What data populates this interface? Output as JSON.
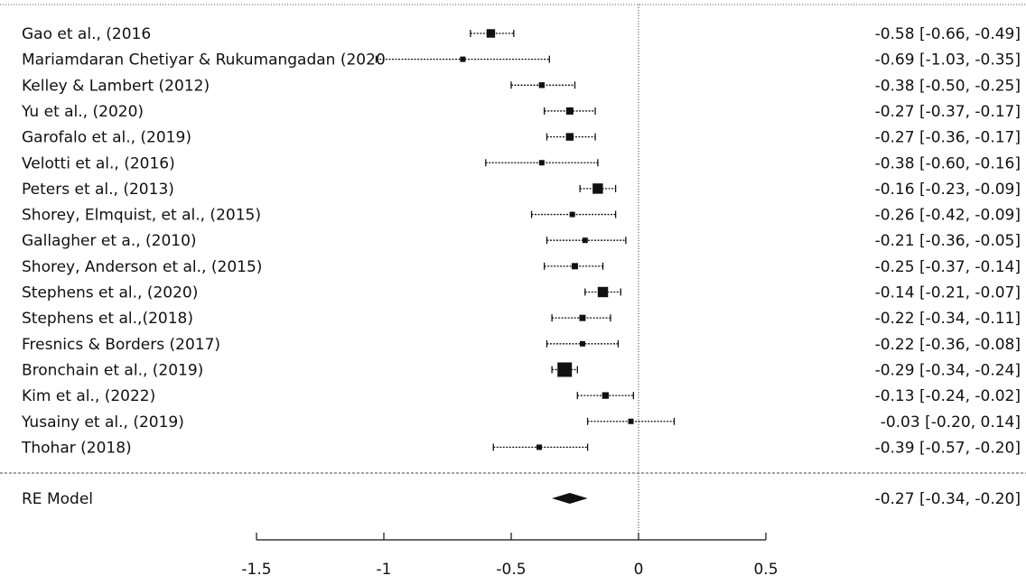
{
  "chart_data": {
    "type": "forest",
    "title": "",
    "xlabel": "",
    "xlim": [
      -1.5,
      0.5
    ],
    "x_ticks": [
      -1.5,
      -1,
      -0.5,
      0,
      0.5
    ],
    "x_tick_labels": [
      "-1.5",
      "-1",
      "-0.5",
      "0",
      "0.5"
    ],
    "reference_line": 0,
    "studies": [
      {
        "label": "Gao et al., (2016",
        "estimate": -0.58,
        "lower": -0.66,
        "upper": -0.49,
        "ci_text": "-0.58 [-0.66, -0.49]"
      },
      {
        "label": "Mariamdaran Chetiyar & Rukumangadan (2020",
        "estimate": -0.69,
        "lower": -1.03,
        "upper": -0.35,
        "ci_text": "-0.69 [-1.03, -0.35]"
      },
      {
        "label": "Kelley & Lambert (2012)",
        "estimate": -0.38,
        "lower": -0.5,
        "upper": -0.25,
        "ci_text": "-0.38 [-0.50, -0.25]"
      },
      {
        "label": "Yu et al., (2020)",
        "estimate": -0.27,
        "lower": -0.37,
        "upper": -0.17,
        "ci_text": "-0.27 [-0.37, -0.17]"
      },
      {
        "label": "Garofalo et al., (2019)",
        "estimate": -0.27,
        "lower": -0.36,
        "upper": -0.17,
        "ci_text": "-0.27 [-0.36, -0.17]"
      },
      {
        "label": "Velotti et al., (2016)",
        "estimate": -0.38,
        "lower": -0.6,
        "upper": -0.16,
        "ci_text": "-0.38 [-0.60, -0.16]"
      },
      {
        "label": "Peters et al., (2013)",
        "estimate": -0.16,
        "lower": -0.23,
        "upper": -0.09,
        "ci_text": "-0.16 [-0.23, -0.09]"
      },
      {
        "label": "Shorey, Elmquist, et al., (2015)",
        "estimate": -0.26,
        "lower": -0.42,
        "upper": -0.09,
        "ci_text": "-0.26 [-0.42, -0.09]"
      },
      {
        "label": "Gallagher et a., (2010)",
        "estimate": -0.21,
        "lower": -0.36,
        "upper": -0.05,
        "ci_text": "-0.21 [-0.36, -0.05]"
      },
      {
        "label": "Shorey, Anderson et al., (2015)",
        "estimate": -0.25,
        "lower": -0.37,
        "upper": -0.14,
        "ci_text": "-0.25 [-0.37, -0.14]"
      },
      {
        "label": "Stephens et al., (2020)",
        "estimate": -0.14,
        "lower": -0.21,
        "upper": -0.07,
        "ci_text": "-0.14 [-0.21, -0.07]"
      },
      {
        "label": "Stephens et al.,(2018)",
        "estimate": -0.22,
        "lower": -0.34,
        "upper": -0.11,
        "ci_text": "-0.22 [-0.34, -0.11]"
      },
      {
        "label": "Fresnics & Borders (2017)",
        "estimate": -0.22,
        "lower": -0.36,
        "upper": -0.08,
        "ci_text": "-0.22 [-0.36, -0.08]"
      },
      {
        "label": "Bronchain et al., (2019)",
        "estimate": -0.29,
        "lower": -0.34,
        "upper": -0.24,
        "ci_text": "-0.29 [-0.34, -0.24]"
      },
      {
        "label": "Kim et al., (2022)",
        "estimate": -0.13,
        "lower": -0.24,
        "upper": -0.02,
        "ci_text": "-0.13 [-0.24, -0.02]"
      },
      {
        "label": "Yusainy et al., (2019)",
        "estimate": -0.03,
        "lower": -0.2,
        "upper": 0.14,
        "ci_text": "-0.03 [-0.20, 0.14]"
      },
      {
        "label": "Thohar (2018)",
        "estimate": -0.39,
        "lower": -0.57,
        "upper": -0.2,
        "ci_text": "-0.39 [-0.57, -0.20]"
      }
    ],
    "summary": {
      "label": "RE Model",
      "estimate": -0.27,
      "lower": -0.34,
      "upper": -0.2,
      "ci_text": "-0.27 [-0.34, -0.20]"
    },
    "colors": {
      "ink": "#111111",
      "background": "#ffffff"
    }
  }
}
